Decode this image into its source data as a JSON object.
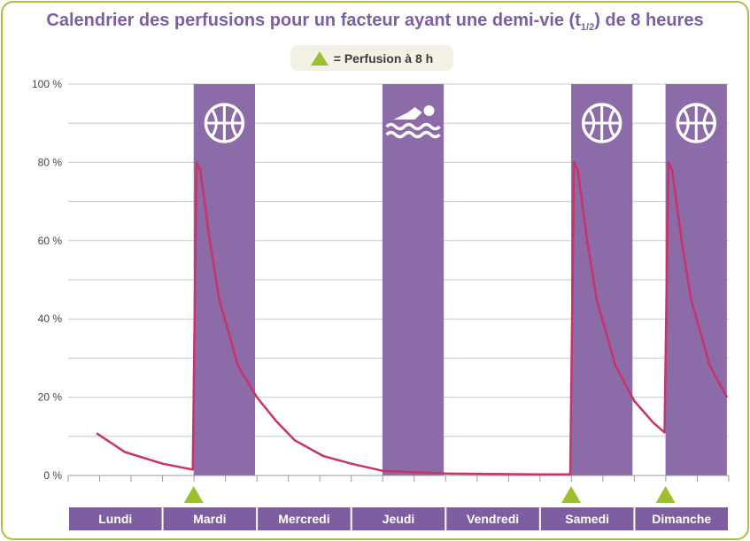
{
  "chart_data": {
    "type": "line",
    "title_main": "Calendrier des perfusions pour un facteur ayant une demi-vie (t",
    "title_sub": "1/2",
    "title_end": ") de 8 heures",
    "legend_label": "= Perfusion à 8 h",
    "ylabel": "",
    "xlabel": "",
    "ylim": [
      0,
      100
    ],
    "xlim": [
      0,
      7
    ],
    "yticks": [
      "0 %",
      "20 %",
      "40 %",
      "60 %",
      "80 %",
      "100 %"
    ],
    "days": [
      "Lundi",
      "Mardi",
      "Mercredi",
      "Jeudi",
      "Vendredi",
      "Samedi",
      "Dimanche"
    ],
    "infusion_day_positions": [
      1.33,
      5.33,
      6.33
    ],
    "activities": [
      {
        "icon": "basketball-icon",
        "start": 1.33,
        "end": 1.98
      },
      {
        "icon": "swimming-icon",
        "start": 3.33,
        "end": 3.98
      },
      {
        "icon": "basketball-icon",
        "start": 5.33,
        "end": 5.98
      },
      {
        "icon": "basketball-icon",
        "start": 6.33,
        "end": 6.98
      }
    ],
    "series": [
      {
        "values": [
          [
            0.3,
            10.8
          ],
          [
            0.6,
            6.0
          ],
          [
            1.0,
            3.0
          ],
          [
            1.32,
            1.5
          ],
          [
            1.36,
            80.0
          ],
          [
            1.4,
            78.0
          ],
          [
            1.5,
            60.0
          ],
          [
            1.6,
            45.0
          ],
          [
            1.8,
            28.0
          ],
          [
            2.0,
            20.0
          ],
          [
            2.2,
            14.0
          ],
          [
            2.4,
            9.0
          ],
          [
            2.7,
            5.0
          ],
          [
            3.0,
            3.0
          ],
          [
            3.33,
            1.2
          ],
          [
            4.0,
            0.5
          ],
          [
            5.0,
            0.3
          ],
          [
            5.32,
            0.3
          ],
          [
            5.36,
            80.0
          ],
          [
            5.4,
            78.0
          ],
          [
            5.5,
            60.0
          ],
          [
            5.6,
            45.0
          ],
          [
            5.8,
            28.0
          ],
          [
            6.0,
            19.0
          ],
          [
            6.2,
            13.5
          ],
          [
            6.32,
            11.0
          ],
          [
            6.36,
            80.0
          ],
          [
            6.4,
            78.0
          ],
          [
            6.5,
            60.0
          ],
          [
            6.6,
            45.0
          ],
          [
            6.8,
            28.0
          ],
          [
            6.98,
            20.0
          ]
        ]
      }
    ],
    "colors": {
      "activity_band": "#8b6ba8",
      "curve": "#c8336a",
      "marker": "#9bc02c",
      "day_band": "#7d5fa1",
      "grid": "#c9c9c9",
      "title": "#7d5fa1",
      "frame": "#a9c23f"
    }
  }
}
